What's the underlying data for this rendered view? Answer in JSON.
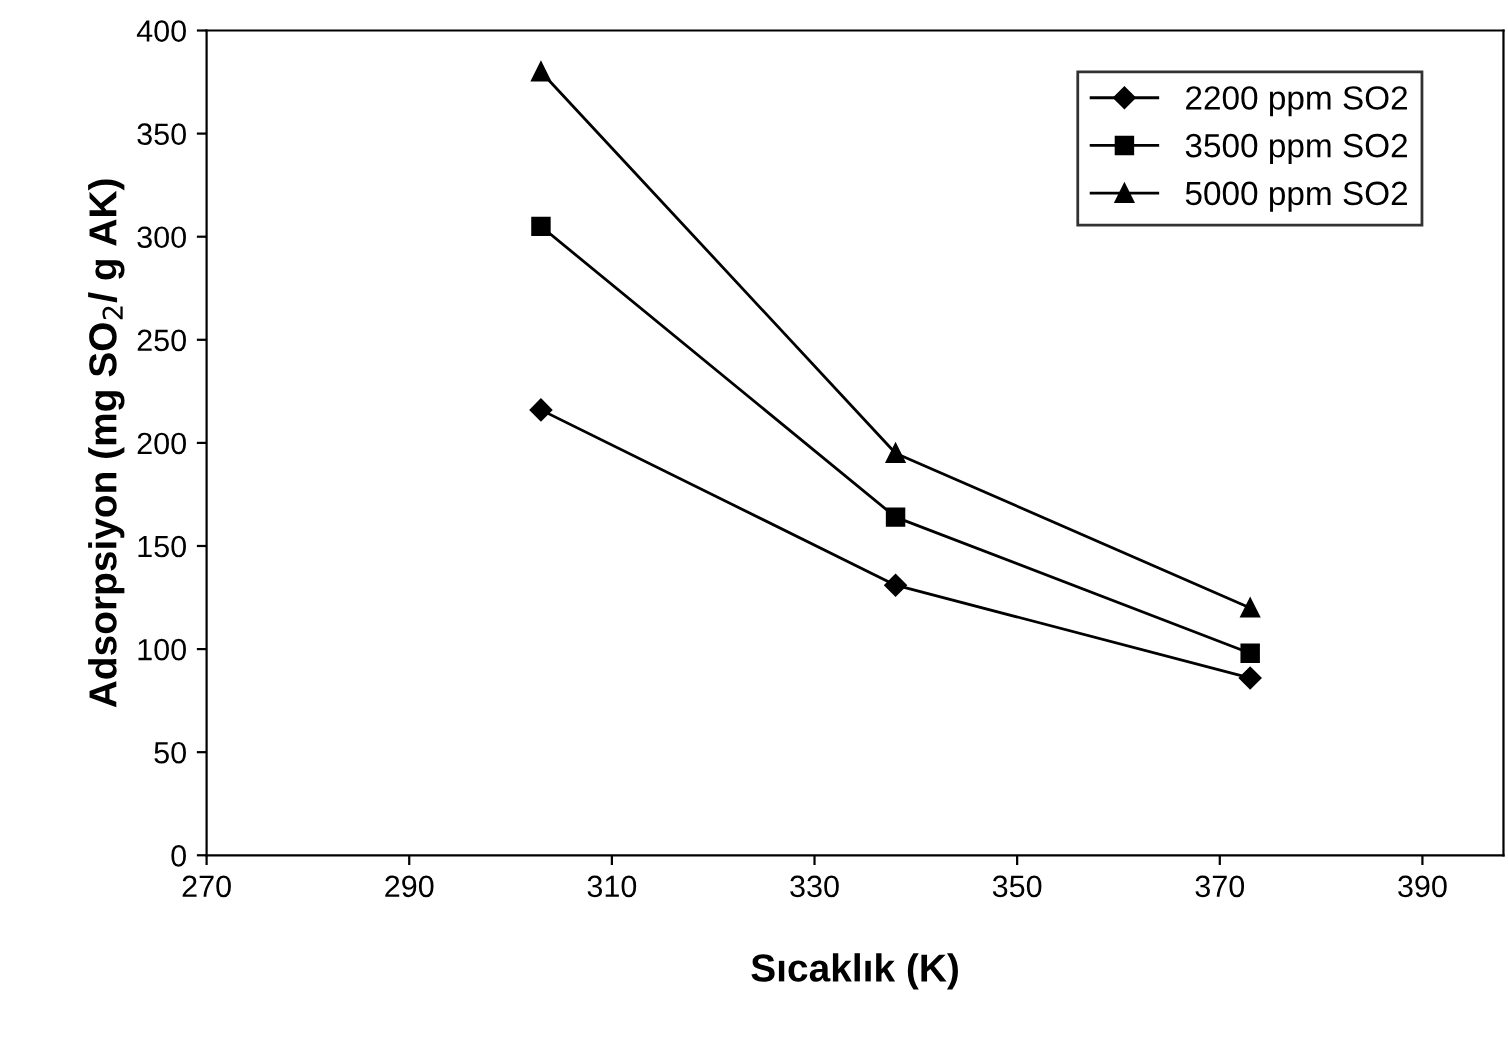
{
  "chart_data": {
    "type": "line",
    "xlabel": "Sıcaklık (K)",
    "ylabel": "Adsorpsiyon (mg SO$_{2}$/ g AK)",
    "x": [
      303,
      338,
      373
    ],
    "series": [
      {
        "name": "2200 ppm SO2",
        "color": "#000000",
        "marker": "diamond",
        "values": [
          216,
          131,
          86
        ]
      },
      {
        "name": "3500 ppm SO2",
        "color": "#000000",
        "marker": "square",
        "values": [
          305,
          164,
          98
        ]
      },
      {
        "name": "5000 ppm SO2",
        "color": "#000000",
        "marker": "triangle",
        "values": [
          380,
          195,
          120
        ]
      }
    ],
    "xlim": [
      270,
      398
    ],
    "xticks": [
      270,
      290,
      310,
      330,
      350,
      370,
      390
    ],
    "ylim": [
      0,
      400
    ],
    "yticks": [
      0,
      50,
      100,
      150,
      200,
      250,
      300,
      350,
      400
    ],
    "grid": false,
    "legend": "top right",
    "line_style": "solid"
  }
}
